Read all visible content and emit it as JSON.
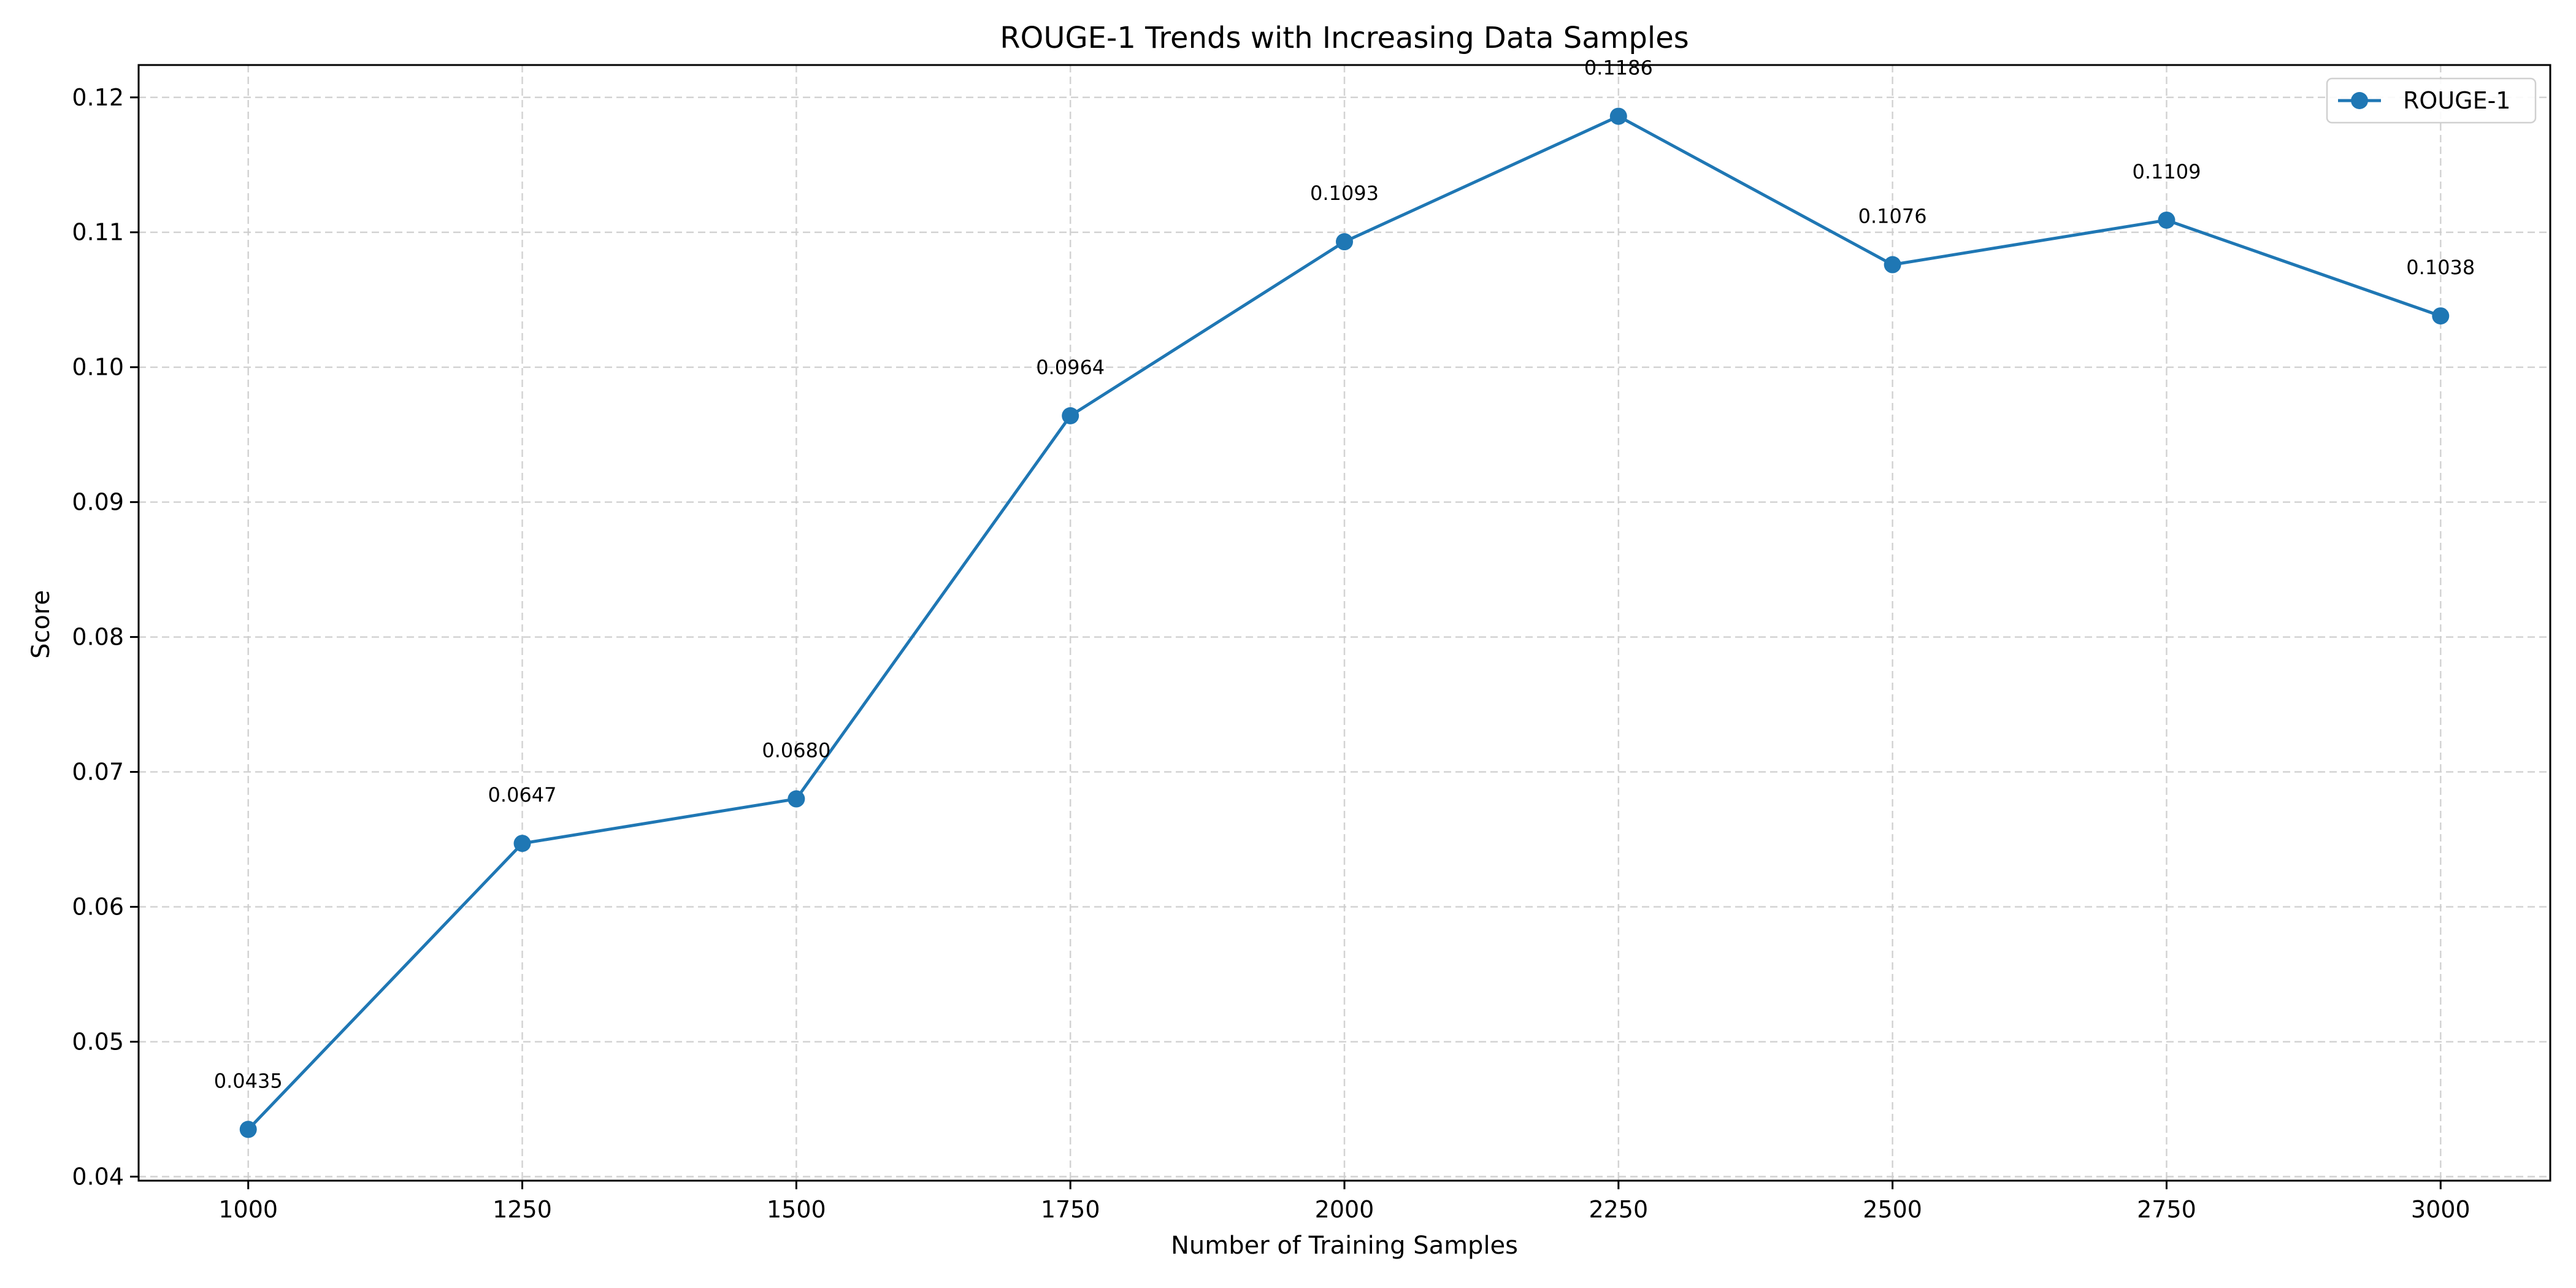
{
  "chart_data": {
    "type": "line",
    "title": "ROUGE-1 Trends with Increasing Data Samples",
    "xlabel": "Number of Training Samples",
    "ylabel": "Score",
    "x": [
      1000,
      1250,
      1500,
      1750,
      2000,
      2250,
      2500,
      2750,
      3000
    ],
    "xticks": [
      1000,
      1250,
      1500,
      1750,
      2000,
      2250,
      2500,
      2750,
      3000
    ],
    "xlim": [
      900,
      3100
    ],
    "yticks": [
      0.04,
      0.05,
      0.06,
      0.07,
      0.08,
      0.09,
      0.1,
      0.11,
      0.12
    ],
    "ytick_labels": [
      "0.04",
      "0.05",
      "0.06",
      "0.07",
      "0.08",
      "0.09",
      "0.10",
      "0.11",
      "0.12"
    ],
    "ylim": [
      0.0397,
      0.1224
    ],
    "grid": true,
    "legend_position": "top-right",
    "series": [
      {
        "name": "ROUGE-1",
        "color": "#1f77b4",
        "marker": "circle",
        "values": [
          0.0435,
          0.0647,
          0.068,
          0.0964,
          0.1093,
          0.1186,
          0.1076,
          0.1109,
          0.1038
        ],
        "labels": [
          "0.0435",
          "0.0647",
          "0.0680",
          "0.0964",
          "0.1093",
          "0.1186",
          "0.1076",
          "0.1109",
          "0.1038"
        ]
      }
    ]
  }
}
